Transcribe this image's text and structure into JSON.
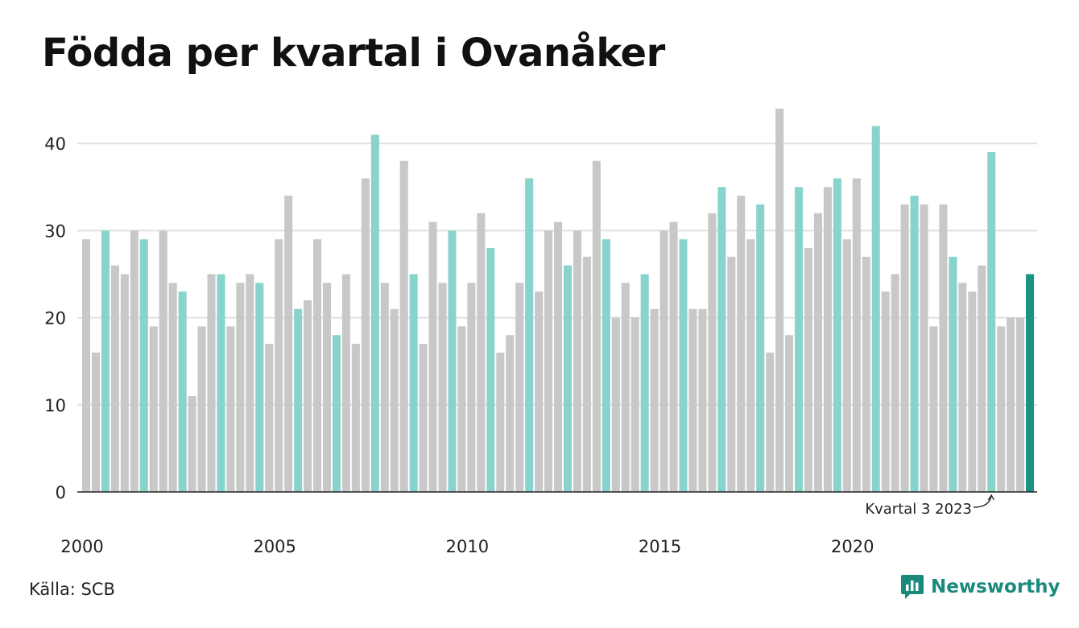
{
  "title": "Födda per kvartal i Ovanåker",
  "source": "Källa: SCB",
  "brand": "Newsworthy",
  "colors": {
    "gray": "#c8c8c8",
    "teal_light": "#88d4cc",
    "teal_dark": "#1b9283",
    "grid": "#e0e0e0",
    "axis": "#222222"
  },
  "chart_data": {
    "type": "bar",
    "ylim": [
      0,
      44
    ],
    "yticks": [
      0,
      10,
      20,
      30,
      40
    ],
    "xtick_labels": [
      "2000",
      "2005",
      "2010",
      "2015",
      "2020"
    ],
    "grid": true,
    "annotation": "Kvartal 3 2023",
    "highlight_rule": "quarter 3 of each year shown in light teal; latest quarter in dark teal",
    "series": [
      {
        "values": [
          29,
          16,
          30,
          26,
          25,
          30,
          29,
          19,
          30,
          24,
          23,
          11,
          19,
          25,
          25,
          19,
          24,
          25,
          24,
          17,
          29,
          34,
          21,
          22,
          29,
          24,
          18,
          25,
          17,
          36,
          41,
          24,
          21,
          38,
          25,
          17,
          31,
          24,
          30,
          19,
          24,
          32,
          28,
          16,
          18,
          24,
          36,
          23,
          30,
          31,
          26,
          30,
          27,
          38,
          29,
          20,
          24,
          20,
          25,
          21,
          30,
          31,
          29,
          21,
          21,
          32,
          35,
          27,
          34,
          29,
          33,
          16,
          44,
          18,
          35,
          28,
          32,
          35,
          36,
          29,
          36,
          27,
          42,
          23,
          25,
          33,
          34,
          33,
          19,
          33,
          27,
          24,
          23,
          26,
          39,
          19,
          20,
          20,
          25
        ]
      }
    ]
  }
}
